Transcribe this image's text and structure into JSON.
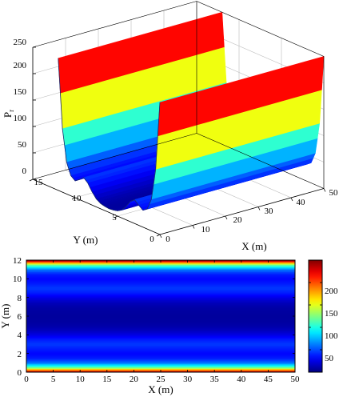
{
  "chart_data": [
    {
      "type": "surface",
      "zlabel": "P",
      "zlabel_sub": "r",
      "xlabel": "X (m)",
      "ylabel": "Y (m)",
      "xlim": [
        0,
        50
      ],
      "ylim": [
        0,
        15
      ],
      "zlim": [
        0,
        250
      ],
      "x_ticks": [
        "0",
        "10",
        "20",
        "30",
        "40",
        "50"
      ],
      "y_ticks": [
        "0",
        "5",
        "10",
        "15"
      ],
      "z_ticks": [
        "0",
        "50",
        "100",
        "150",
        "200",
        "250"
      ],
      "grid": true,
      "colormap": "jet",
      "profile_y": [
        0,
        0.5,
        1,
        1.5,
        2,
        2.5,
        3,
        3.5,
        4,
        4.5,
        5,
        5.5,
        6,
        6.5,
        7,
        7.5,
        8,
        8.5,
        9,
        9.5,
        10,
        10.5,
        11,
        11.5,
        12
      ],
      "profile_z": [
        250,
        120,
        60,
        38,
        32,
        38,
        45,
        38,
        25,
        15,
        10,
        8,
        7,
        8,
        10,
        15,
        25,
        38,
        45,
        38,
        32,
        38,
        60,
        120,
        250
      ]
    },
    {
      "type": "heatmap",
      "xlabel": "X (m)",
      "ylabel": "Y (m)",
      "xlim": [
        0,
        50
      ],
      "ylim": [
        0,
        12
      ],
      "x_ticks": [
        "0",
        "5",
        "10",
        "15",
        "20",
        "25",
        "30",
        "35",
        "40",
        "45",
        "50"
      ],
      "y_ticks": [
        "0",
        "2",
        "4",
        "6",
        "8",
        "10",
        "12"
      ],
      "colorbar_ticks": [
        "50",
        "100",
        "150",
        "200"
      ],
      "colorbar_range": [
        0,
        250
      ],
      "colormap": "jet"
    }
  ]
}
